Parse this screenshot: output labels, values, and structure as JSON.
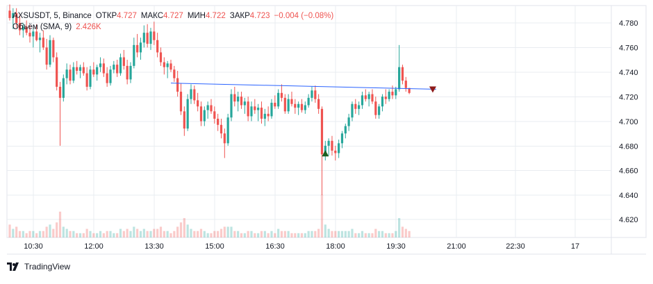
{
  "legend": {
    "symbol": "AXSUSDT, 5, Binance",
    "open_label": "ОТКР",
    "open_value": "4.727",
    "high_label": "МАКС",
    "high_value": "4.727",
    "low_label": "МИН",
    "low_value": "4.722",
    "close_label": "ЗАКР",
    "close_value": "4.723",
    "change": "−0.004 (−0.08%)",
    "volume_label": "Объём (SMA, 9)",
    "volume_value": "2.426K"
  },
  "brand": {
    "name": "TradingView"
  },
  "colors": {
    "up": "#26a69a",
    "down": "#ef5350",
    "trendline": "#2962ff",
    "grid": "#e9ecf1"
  },
  "chart_data": {
    "type": "candlestick",
    "x_ticks": [
      "10:30",
      "12:00",
      "13:30",
      "15:00",
      "16:30",
      "18:00",
      "19:30",
      "21:00",
      "22:30",
      "17"
    ],
    "y_ticks": [
      "4.780",
      "4.760",
      "4.740",
      "4.720",
      "4.700",
      "4.680",
      "4.660",
      "4.640",
      "4.620"
    ],
    "ylim": [
      4.608,
      4.796
    ],
    "grid": true,
    "candles": [
      [
        4.79,
        4.795,
        4.782,
        4.784,
        0.6
      ],
      [
        4.784,
        4.792,
        4.775,
        4.788,
        0.4
      ],
      [
        4.788,
        4.792,
        4.776,
        4.78,
        0.5
      ],
      [
        4.78,
        4.786,
        4.77,
        4.774,
        0.3
      ],
      [
        4.774,
        4.78,
        4.768,
        4.777,
        0.3
      ],
      [
        4.777,
        4.782,
        4.77,
        4.772,
        0.2
      ],
      [
        4.772,
        4.778,
        4.764,
        4.769,
        0.3
      ],
      [
        4.769,
        4.776,
        4.76,
        4.773,
        0.3
      ],
      [
        4.773,
        4.779,
        4.765,
        4.766,
        0.2
      ],
      [
        4.766,
        4.772,
        4.756,
        4.768,
        0.3
      ],
      [
        4.768,
        4.774,
        4.758,
        4.76,
        0.3
      ],
      [
        4.76,
        4.767,
        4.742,
        4.746,
        0.5
      ],
      [
        4.746,
        4.77,
        4.744,
        4.766,
        0.6
      ],
      [
        4.766,
        4.768,
        4.748,
        4.752,
        0.4
      ],
      [
        4.752,
        4.756,
        4.725,
        4.728,
        0.7
      ],
      [
        4.728,
        4.732,
        4.68,
        4.719,
        1.2
      ],
      [
        4.719,
        4.738,
        4.716,
        4.735,
        0.5
      ],
      [
        4.735,
        4.747,
        4.73,
        4.742,
        0.4
      ],
      [
        4.742,
        4.746,
        4.73,
        4.733,
        0.3
      ],
      [
        4.733,
        4.748,
        4.731,
        4.744,
        0.3
      ],
      [
        4.744,
        4.749,
        4.738,
        4.741,
        0.2
      ],
      [
        4.741,
        4.746,
        4.735,
        4.744,
        0.2
      ],
      [
        4.744,
        4.748,
        4.737,
        4.739,
        0.2
      ],
      [
        4.739,
        4.744,
        4.725,
        4.728,
        0.4
      ],
      [
        4.728,
        4.745,
        4.726,
        4.742,
        0.3
      ],
      [
        4.742,
        4.748,
        4.736,
        4.738,
        0.2
      ],
      [
        4.738,
        4.746,
        4.733,
        4.744,
        0.2
      ],
      [
        4.744,
        4.752,
        4.74,
        4.747,
        0.3
      ],
      [
        4.747,
        4.751,
        4.736,
        4.739,
        0.2
      ],
      [
        4.739,
        4.744,
        4.728,
        4.731,
        0.3
      ],
      [
        4.731,
        4.745,
        4.729,
        4.742,
        0.3
      ],
      [
        4.742,
        4.749,
        4.739,
        4.746,
        0.2
      ],
      [
        4.746,
        4.75,
        4.736,
        4.739,
        0.2
      ],
      [
        4.739,
        4.755,
        4.737,
        4.752,
        0.4
      ],
      [
        4.752,
        4.758,
        4.742,
        4.745,
        0.3
      ],
      [
        4.745,
        4.75,
        4.73,
        4.734,
        0.4
      ],
      [
        4.734,
        4.748,
        4.731,
        4.745,
        0.3
      ],
      [
        4.745,
        4.768,
        4.743,
        4.762,
        0.5
      ],
      [
        4.762,
        4.771,
        4.752,
        4.756,
        0.4
      ],
      [
        4.756,
        4.768,
        4.75,
        4.764,
        0.3
      ],
      [
        4.764,
        4.778,
        4.76,
        4.772,
        0.4
      ],
      [
        4.772,
        4.779,
        4.76,
        4.763,
        0.3
      ],
      [
        4.763,
        4.776,
        4.758,
        4.773,
        0.3
      ],
      [
        4.773,
        4.781,
        4.762,
        4.766,
        0.4
      ],
      [
        4.766,
        4.772,
        4.752,
        4.756,
        0.4
      ],
      [
        4.756,
        4.76,
        4.745,
        4.748,
        0.5
      ],
      [
        4.748,
        4.752,
        4.738,
        4.744,
        0.3
      ],
      [
        4.744,
        4.749,
        4.735,
        4.747,
        0.3
      ],
      [
        4.747,
        4.75,
        4.74,
        4.742,
        0.2
      ],
      [
        4.742,
        4.745,
        4.732,
        4.735,
        0.3
      ],
      [
        4.735,
        4.741,
        4.72,
        4.724,
        0.5
      ],
      [
        4.724,
        4.731,
        4.705,
        4.708,
        0.7
      ],
      [
        4.708,
        4.712,
        4.688,
        4.694,
        0.9
      ],
      [
        4.694,
        4.722,
        4.692,
        4.718,
        0.6
      ],
      [
        4.718,
        4.73,
        4.714,
        4.726,
        0.4
      ],
      [
        4.726,
        4.729,
        4.714,
        4.717,
        0.3
      ],
      [
        4.717,
        4.723,
        4.708,
        4.712,
        0.3
      ],
      [
        4.712,
        4.716,
        4.696,
        4.7,
        0.4
      ],
      [
        4.7,
        4.712,
        4.696,
        4.709,
        0.3
      ],
      [
        4.709,
        4.716,
        4.702,
        4.713,
        0.2
      ],
      [
        4.713,
        4.718,
        4.706,
        4.708,
        0.2
      ],
      [
        4.708,
        4.712,
        4.698,
        4.702,
        0.3
      ],
      [
        4.702,
        4.706,
        4.692,
        4.697,
        0.3
      ],
      [
        4.697,
        4.702,
        4.686,
        4.69,
        0.4
      ],
      [
        4.69,
        4.694,
        4.67,
        4.682,
        0.5
      ],
      [
        4.682,
        4.706,
        4.68,
        4.703,
        0.5
      ],
      [
        4.703,
        4.726,
        4.7,
        4.722,
        0.5
      ],
      [
        4.722,
        4.728,
        4.712,
        4.716,
        0.3
      ],
      [
        4.716,
        4.724,
        4.708,
        4.72,
        0.3
      ],
      [
        4.72,
        4.724,
        4.71,
        4.713,
        0.2
      ],
      [
        4.713,
        4.719,
        4.706,
        4.716,
        0.2
      ],
      [
        4.716,
        4.72,
        4.7,
        4.704,
        0.3
      ],
      [
        4.704,
        4.716,
        4.7,
        4.712,
        0.3
      ],
      [
        4.712,
        4.718,
        4.706,
        4.709,
        0.2
      ],
      [
        4.709,
        4.714,
        4.7,
        4.711,
        0.2
      ],
      [
        4.711,
        4.716,
        4.698,
        4.702,
        0.3
      ],
      [
        4.702,
        4.71,
        4.696,
        4.706,
        0.3
      ],
      [
        4.706,
        4.712,
        4.7,
        4.704,
        0.2
      ],
      [
        4.704,
        4.718,
        4.702,
        4.715,
        0.3
      ],
      [
        4.715,
        4.721,
        4.71,
        4.712,
        0.2
      ],
      [
        4.712,
        4.726,
        4.71,
        4.723,
        0.4
      ],
      [
        4.723,
        4.73,
        4.716,
        4.719,
        0.3
      ],
      [
        4.719,
        4.722,
        4.706,
        4.708,
        0.3
      ],
      [
        4.708,
        4.722,
        4.706,
        4.718,
        0.3
      ],
      [
        4.718,
        4.724,
        4.712,
        4.714,
        0.2
      ],
      [
        4.714,
        4.718,
        4.706,
        4.711,
        0.2
      ],
      [
        4.711,
        4.716,
        4.705,
        4.714,
        0.2
      ],
      [
        4.714,
        4.718,
        4.707,
        4.709,
        0.2
      ],
      [
        4.709,
        4.716,
        4.706,
        4.713,
        0.2
      ],
      [
        4.713,
        4.722,
        4.711,
        4.719,
        0.3
      ],
      [
        4.719,
        4.728,
        4.716,
        4.725,
        0.3
      ],
      [
        4.725,
        4.729,
        4.715,
        4.718,
        0.3
      ],
      [
        4.718,
        4.722,
        4.706,
        4.71,
        0.4
      ],
      [
        4.71,
        4.712,
        4.64,
        4.673,
        2.0
      ],
      [
        4.673,
        4.684,
        4.668,
        4.68,
        0.6
      ],
      [
        4.68,
        4.686,
        4.672,
        4.684,
        0.4
      ],
      [
        4.684,
        4.688,
        4.672,
        4.676,
        0.3
      ],
      [
        4.676,
        4.68,
        4.668,
        4.674,
        0.3
      ],
      [
        4.674,
        4.685,
        4.67,
        4.682,
        0.3
      ],
      [
        4.682,
        4.692,
        4.678,
        4.69,
        0.3
      ],
      [
        4.69,
        4.698,
        4.686,
        4.696,
        0.3
      ],
      [
        4.696,
        4.706,
        4.692,
        4.703,
        0.3
      ],
      [
        4.703,
        4.716,
        4.7,
        4.714,
        0.4
      ],
      [
        4.714,
        4.718,
        4.706,
        4.71,
        0.2
      ],
      [
        4.71,
        4.716,
        4.705,
        4.713,
        0.2
      ],
      [
        4.713,
        4.724,
        4.71,
        4.721,
        0.3
      ],
      [
        4.721,
        4.726,
        4.716,
        4.718,
        0.2
      ],
      [
        4.718,
        4.724,
        4.712,
        4.722,
        0.2
      ],
      [
        4.722,
        4.726,
        4.714,
        4.716,
        0.2
      ],
      [
        4.716,
        4.72,
        4.702,
        4.705,
        0.4
      ],
      [
        4.705,
        4.714,
        4.702,
        4.712,
        0.3
      ],
      [
        4.712,
        4.722,
        4.708,
        4.72,
        0.3
      ],
      [
        4.72,
        4.726,
        4.714,
        4.718,
        0.2
      ],
      [
        4.718,
        4.726,
        4.716,
        4.724,
        0.2
      ],
      [
        4.724,
        4.729,
        4.718,
        4.721,
        0.2
      ],
      [
        4.721,
        4.728,
        4.718,
        4.726,
        0.3
      ],
      [
        4.726,
        4.762,
        4.724,
        4.744,
        0.9
      ],
      [
        4.744,
        4.746,
        4.73,
        4.733,
        0.5
      ],
      [
        4.733,
        4.736,
        4.724,
        4.727,
        0.4
      ],
      [
        4.727,
        4.727,
        4.722,
        4.723,
        0.3
      ]
    ],
    "trendline": {
      "from": [
        48,
        4.731
      ],
      "to": [
        127,
        4.726
      ]
    },
    "markers": [
      {
        "type": "up-arrow",
        "index": 94,
        "price": 4.673
      },
      {
        "type": "down-arrow",
        "index": 126,
        "price": 4.726
      }
    ]
  }
}
